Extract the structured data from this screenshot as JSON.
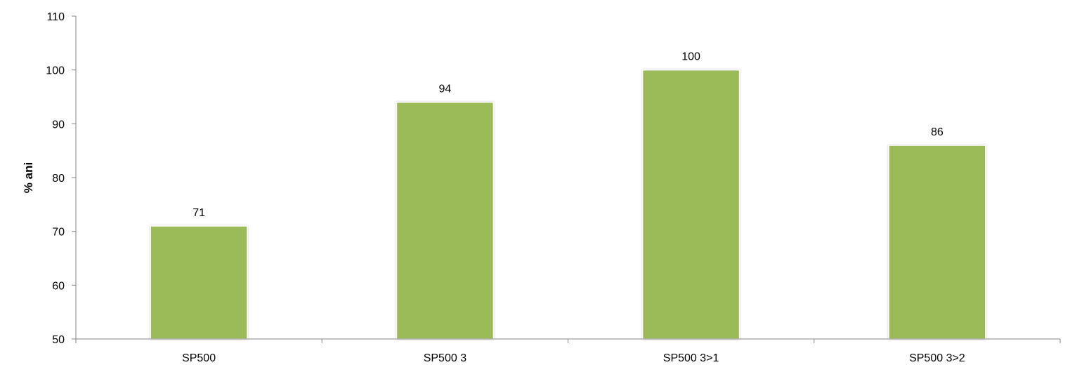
{
  "chart_data": {
    "type": "bar",
    "title": "",
    "xlabel": "",
    "ylabel": "% ani",
    "categories": [
      "SP500",
      "SP500 3",
      "SP500 3>1",
      "SP500 3>2"
    ],
    "values": [
      71,
      94,
      100,
      86
    ],
    "ylim": [
      50,
      110
    ],
    "yticks": [
      50,
      60,
      70,
      80,
      90,
      100,
      110
    ],
    "ytick_labels": [
      "50",
      "60",
      "70",
      "80",
      "90",
      "100",
      "110"
    ],
    "data_labels": [
      "71",
      "94",
      "100",
      "86"
    ],
    "grid": false,
    "legend": "none",
    "bar_color": "#9BBB59",
    "axis_color": "#868686"
  }
}
